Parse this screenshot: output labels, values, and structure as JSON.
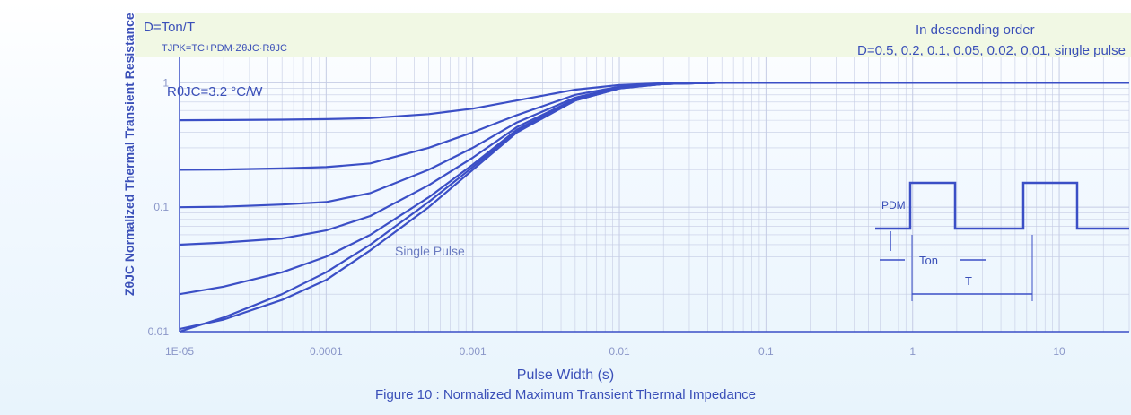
{
  "chart_data": {
    "type": "line",
    "title": "Figure 10 : Normalized Maximum Transient Thermal Impedance",
    "xlabel": "Pulse Width (s)",
    "ylabel": "ZθJC Normalized Thermal Transient Resistance",
    "xscale": "log",
    "yscale": "log",
    "xlim": [
      1e-05,
      30
    ],
    "ylim": [
      0.01,
      1.6
    ],
    "x_ticks": [
      "1E-05",
      "0.0001",
      "0.001",
      "0.01",
      "0.1",
      "1",
      "10"
    ],
    "y_ticks": [
      "0.01",
      "0.1",
      "1"
    ],
    "x": [
      1e-05,
      2e-05,
      5e-05,
      0.0001,
      0.0002,
      0.0005,
      0.001,
      0.002,
      0.005,
      0.01,
      0.02,
      0.05,
      0.1,
      1,
      10,
      30
    ],
    "series": [
      {
        "name": "D=0.5",
        "values": [
          0.5,
          0.502,
          0.505,
          0.51,
          0.52,
          0.56,
          0.62,
          0.72,
          0.88,
          0.96,
          0.99,
          1.0,
          1.0,
          1.0,
          1.0,
          1.0
        ]
      },
      {
        "name": "D=0.2",
        "values": [
          0.2,
          0.201,
          0.205,
          0.21,
          0.225,
          0.3,
          0.4,
          0.55,
          0.8,
          0.93,
          0.98,
          1.0,
          1.0,
          1.0,
          1.0,
          1.0
        ]
      },
      {
        "name": "D=0.1",
        "values": [
          0.1,
          0.101,
          0.105,
          0.11,
          0.13,
          0.2,
          0.3,
          0.48,
          0.76,
          0.92,
          0.98,
          1.0,
          1.0,
          1.0,
          1.0,
          1.0
        ]
      },
      {
        "name": "D=0.05",
        "values": [
          0.05,
          0.052,
          0.056,
          0.065,
          0.085,
          0.15,
          0.25,
          0.44,
          0.74,
          0.91,
          0.98,
          1.0,
          1.0,
          1.0,
          1.0,
          1.0
        ]
      },
      {
        "name": "D=0.02",
        "values": [
          0.02,
          0.023,
          0.03,
          0.04,
          0.06,
          0.12,
          0.22,
          0.42,
          0.73,
          0.91,
          0.98,
          1.0,
          1.0,
          1.0,
          1.0,
          1.0
        ]
      },
      {
        "name": "D=0.01",
        "values": [
          0.01,
          0.013,
          0.02,
          0.03,
          0.05,
          0.11,
          0.21,
          0.41,
          0.72,
          0.9,
          0.98,
          1.0,
          1.0,
          1.0,
          1.0,
          1.0
        ]
      },
      {
        "name": "single pulse",
        "values": [
          0.0105,
          0.0125,
          0.018,
          0.026,
          0.045,
          0.1,
          0.2,
          0.4,
          0.72,
          0.9,
          0.98,
          1.0,
          1.0,
          1.0,
          1.0,
          1.0
        ]
      }
    ],
    "legend": "top-right",
    "grid": true,
    "annotations": {
      "duty": "D=Ton/T",
      "formula": "TJPK=TC+PDM·ZθJC·RθJC",
      "rth": "RθJC=3.2 °C/W",
      "order_heading": "In descending order",
      "order_list": "D=0.5, 0.2, 0.1, 0.05, 0.02, 0.01, single pulse",
      "single": "Single Pulse",
      "pdm": "PDM",
      "ton": "Ton",
      "period": "T"
    },
    "colors": {
      "line": "#3b4fc6",
      "grid": "#c5cce4",
      "text": "#3a4fb8",
      "inset": "#eef8dd"
    }
  }
}
